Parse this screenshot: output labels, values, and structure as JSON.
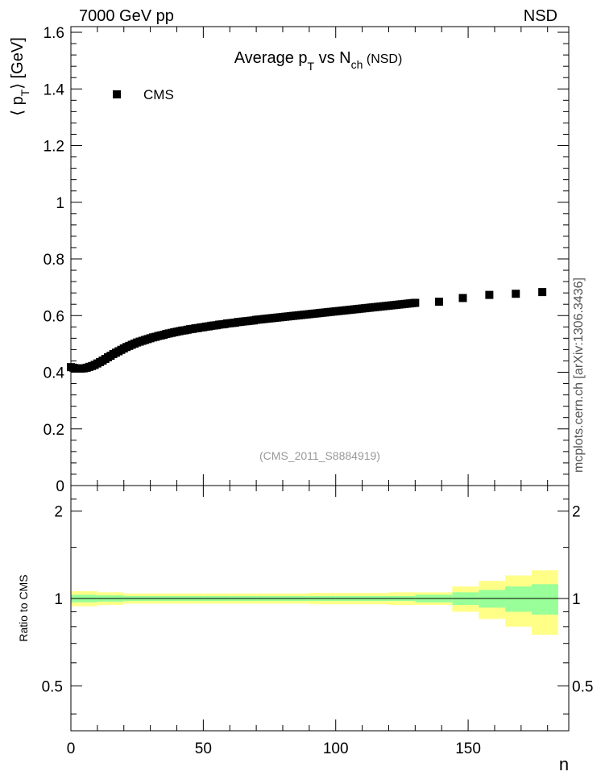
{
  "header": {
    "left": "7000 GeV pp",
    "right": "NSD"
  },
  "side_credit": "mcplots.cern.ch [arXiv:1306.3436]",
  "chart_data": [
    {
      "type": "scatter",
      "title_main": "Average p",
      "title_sub1": "T",
      "title_mid": " vs N",
      "title_sub2": "ch",
      "title_tail": " (NSD)",
      "ylabel_open": "⟨ p",
      "ylabel_sub": "T",
      "ylabel_close": "⟩ [GeV]",
      "xlim": [
        0,
        188
      ],
      "ylim": [
        0,
        1.62
      ],
      "yticks": [
        0,
        0.2,
        0.4,
        0.6,
        0.8,
        1,
        1.2,
        1.4,
        1.6
      ],
      "ytick_labels": [
        "0",
        "0.2",
        "0.4",
        "0.6",
        "0.8",
        "1",
        "1.2",
        "1.4",
        "1.6"
      ],
      "legend": {
        "label": "CMS",
        "position": "top-left"
      },
      "watermark": "(CMS_2011_S8884919)",
      "series": [
        {
          "name": "CMS",
          "x": [
            0,
            1,
            2,
            3,
            4,
            5,
            6,
            7,
            8,
            9,
            10,
            11,
            12,
            13,
            14,
            15,
            16,
            17,
            18,
            19,
            20,
            21,
            22,
            23,
            24,
            25,
            26,
            27,
            28,
            29,
            30,
            31,
            32,
            33,
            34,
            35,
            36,
            37,
            38,
            39,
            40,
            41,
            42,
            43,
            44,
            45,
            46,
            47,
            48,
            49,
            50,
            51,
            52,
            53,
            54,
            55,
            56,
            57,
            58,
            59,
            60,
            61,
            62,
            63,
            64,
            65,
            66,
            67,
            68,
            69,
            70,
            71,
            72,
            73,
            74,
            75,
            76,
            77,
            78,
            79,
            80,
            81,
            82,
            83,
            84,
            85,
            86,
            87,
            88,
            89,
            90,
            91,
            92,
            93,
            94,
            95,
            96,
            97,
            98,
            99,
            100,
            101,
            102,
            103,
            104,
            105,
            106,
            107,
            108,
            109,
            110,
            111,
            112,
            113,
            114,
            115,
            116,
            117,
            118,
            119,
            120,
            121,
            122,
            123,
            124,
            125,
            126,
            127,
            128,
            129,
            130,
            139,
            148,
            158,
            168,
            178
          ],
          "y": [
            0.418,
            0.416,
            0.414,
            0.413,
            0.413,
            0.414,
            0.416,
            0.419,
            0.422,
            0.426,
            0.431,
            0.436,
            0.441,
            0.447,
            0.453,
            0.458,
            0.464,
            0.469,
            0.474,
            0.479,
            0.484,
            0.489,
            0.493,
            0.497,
            0.501,
            0.505,
            0.508,
            0.511,
            0.514,
            0.517,
            0.52,
            0.523,
            0.525,
            0.528,
            0.53,
            0.532,
            0.535,
            0.537,
            0.539,
            0.541,
            0.543,
            0.545,
            0.547,
            0.548,
            0.55,
            0.552,
            0.553,
            0.555,
            0.556,
            0.558,
            0.559,
            0.561,
            0.562,
            0.564,
            0.565,
            0.566,
            0.568,
            0.569,
            0.57,
            0.572,
            0.573,
            0.574,
            0.575,
            0.577,
            0.578,
            0.579,
            0.58,
            0.581,
            0.582,
            0.583,
            0.585,
            0.586,
            0.587,
            0.588,
            0.589,
            0.59,
            0.591,
            0.592,
            0.593,
            0.594,
            0.595,
            0.596,
            0.597,
            0.598,
            0.599,
            0.6,
            0.601,
            0.602,
            0.603,
            0.604,
            0.605,
            0.606,
            0.607,
            0.608,
            0.609,
            0.61,
            0.611,
            0.612,
            0.613,
            0.614,
            0.615,
            0.616,
            0.617,
            0.618,
            0.619,
            0.62,
            0.621,
            0.622,
            0.623,
            0.624,
            0.625,
            0.626,
            0.627,
            0.628,
            0.629,
            0.63,
            0.631,
            0.632,
            0.633,
            0.634,
            0.635,
            0.636,
            0.637,
            0.638,
            0.639,
            0.64,
            0.641,
            0.642,
            0.643,
            0.644,
            0.645,
            0.649,
            0.662,
            0.673,
            0.677,
            0.683
          ],
          "color": "#000000"
        }
      ]
    },
    {
      "type": "area",
      "ylabel": "Ratio to CMS",
      "xlabel": "n",
      "xlim": [
        0,
        188
      ],
      "ylim": [
        0.35,
        2.45
      ],
      "log_y": true,
      "xticks": [
        0,
        50,
        100,
        150
      ],
      "xtick_labels": [
        "0",
        "50",
        "100",
        "150"
      ],
      "yticks": [
        0.5,
        1,
        2
      ],
      "ytick_labels": [
        "0.5",
        "1",
        "2"
      ],
      "reference_value": 1,
      "bands": {
        "edges": [
          0,
          10,
          20,
          30,
          40,
          50,
          60,
          70,
          80,
          90,
          100,
          110,
          120,
          130,
          144,
          154,
          164,
          174,
          184
        ],
        "green_half": [
          0.03,
          0.025,
          0.02,
          0.02,
          0.02,
          0.02,
          0.02,
          0.02,
          0.02,
          0.02,
          0.02,
          0.02,
          0.02,
          0.03,
          0.05,
          0.07,
          0.1,
          0.12
        ],
        "yellow_half": [
          0.06,
          0.05,
          0.04,
          0.04,
          0.04,
          0.04,
          0.04,
          0.04,
          0.04,
          0.045,
          0.045,
          0.045,
          0.05,
          0.05,
          0.1,
          0.15,
          0.2,
          0.25
        ],
        "green_color": "#99ff99",
        "yellow_color": "#ffff88"
      }
    }
  ]
}
